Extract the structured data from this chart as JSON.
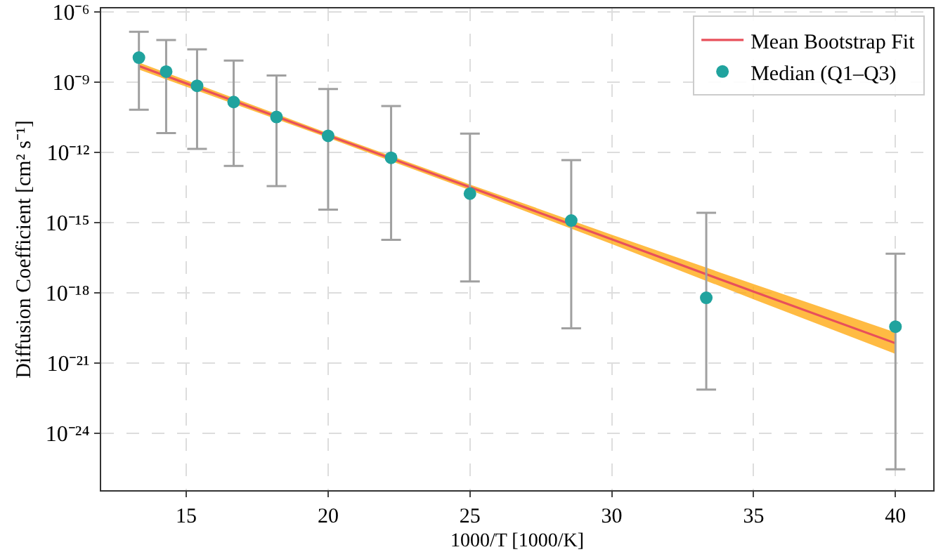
{
  "chart_data": {
    "type": "scatter",
    "xlabel": "1000/T [1000/K]",
    "ylabel": "Diffusion Coefficient [cm² s⁻¹]",
    "log": "y",
    "grid": true,
    "legend": "top right",
    "xlim": [
      12,
      41.33
    ],
    "xticks": [
      15,
      20,
      25,
      30,
      35,
      40
    ],
    "ylim": [
      3.6e-27,
      1.4e-06
    ],
    "yticks": [
      {
        "value": 1e-06,
        "label": "10⁻⁶"
      },
      {
        "value": 1e-09,
        "label": "10⁻⁹"
      },
      {
        "value": 1e-12,
        "label": "10⁻¹²"
      },
      {
        "value": 1e-15,
        "label": "10⁻¹⁵"
      },
      {
        "value": 1e-18,
        "label": "10⁻¹⁸"
      },
      {
        "value": 1e-21,
        "label": "10⁻²¹"
      },
      {
        "value": 1e-24,
        "label": "10⁻²⁴"
      }
    ],
    "series": [
      {
        "name": "Mean Bootstrap Fit",
        "type": "line",
        "marker": "none",
        "color": "#e8505b",
        "x": [
          13.33,
          20,
          25,
          30,
          35,
          40
        ],
        "values": [
          4.8e-09,
          5.2e-12,
          3.2e-14,
          1.9e-16,
          1.1e-18,
          6.9e-21
        ],
        "lower": [
          3.4e-09,
          4.1e-12,
          2.4e-14,
          1.2e-16,
          5.2e-19,
          2.4e-21
        ],
        "upper": [
          6.8e-09,
          6.5e-12,
          4.2e-14,
          3e-16,
          2.3e-18,
          2e-20
        ]
      },
      {
        "name": "Median (Q1–Q3)",
        "marker": "circle",
        "color": "#20a39e",
        "x": [
          13.33,
          14.29,
          15.38,
          16.67,
          18.18,
          20,
          22.22,
          25,
          28.57,
          33.33,
          40
        ],
        "values": [
          1.1e-08,
          2.8e-09,
          6.9e-10,
          1.4e-10,
          3.2e-11,
          5e-12,
          5.8e-13,
          1.7e-14,
          1.2e-15,
          6e-19,
          3.5e-20
        ],
        "errors": [
          [
            6.6e-11,
            1.4e-07
          ],
          [
            6.6e-12,
            6.3e-08
          ],
          [
            1.4e-12,
            2.5e-08
          ],
          [
            2.6e-13,
            8.3e-09
          ],
          [
            3.6e-14,
            1.9e-09
          ],
          [
            3.5e-15,
            5e-10
          ],
          [
            1.8e-16,
            9.5e-11
          ],
          [
            3e-18,
            6.3e-12
          ],
          [
            3e-20,
            4.6e-13
          ],
          [
            7.2e-23,
            2.6e-15
          ],
          [
            2.8e-26,
            4.6e-17
          ]
        ]
      }
    ]
  }
}
